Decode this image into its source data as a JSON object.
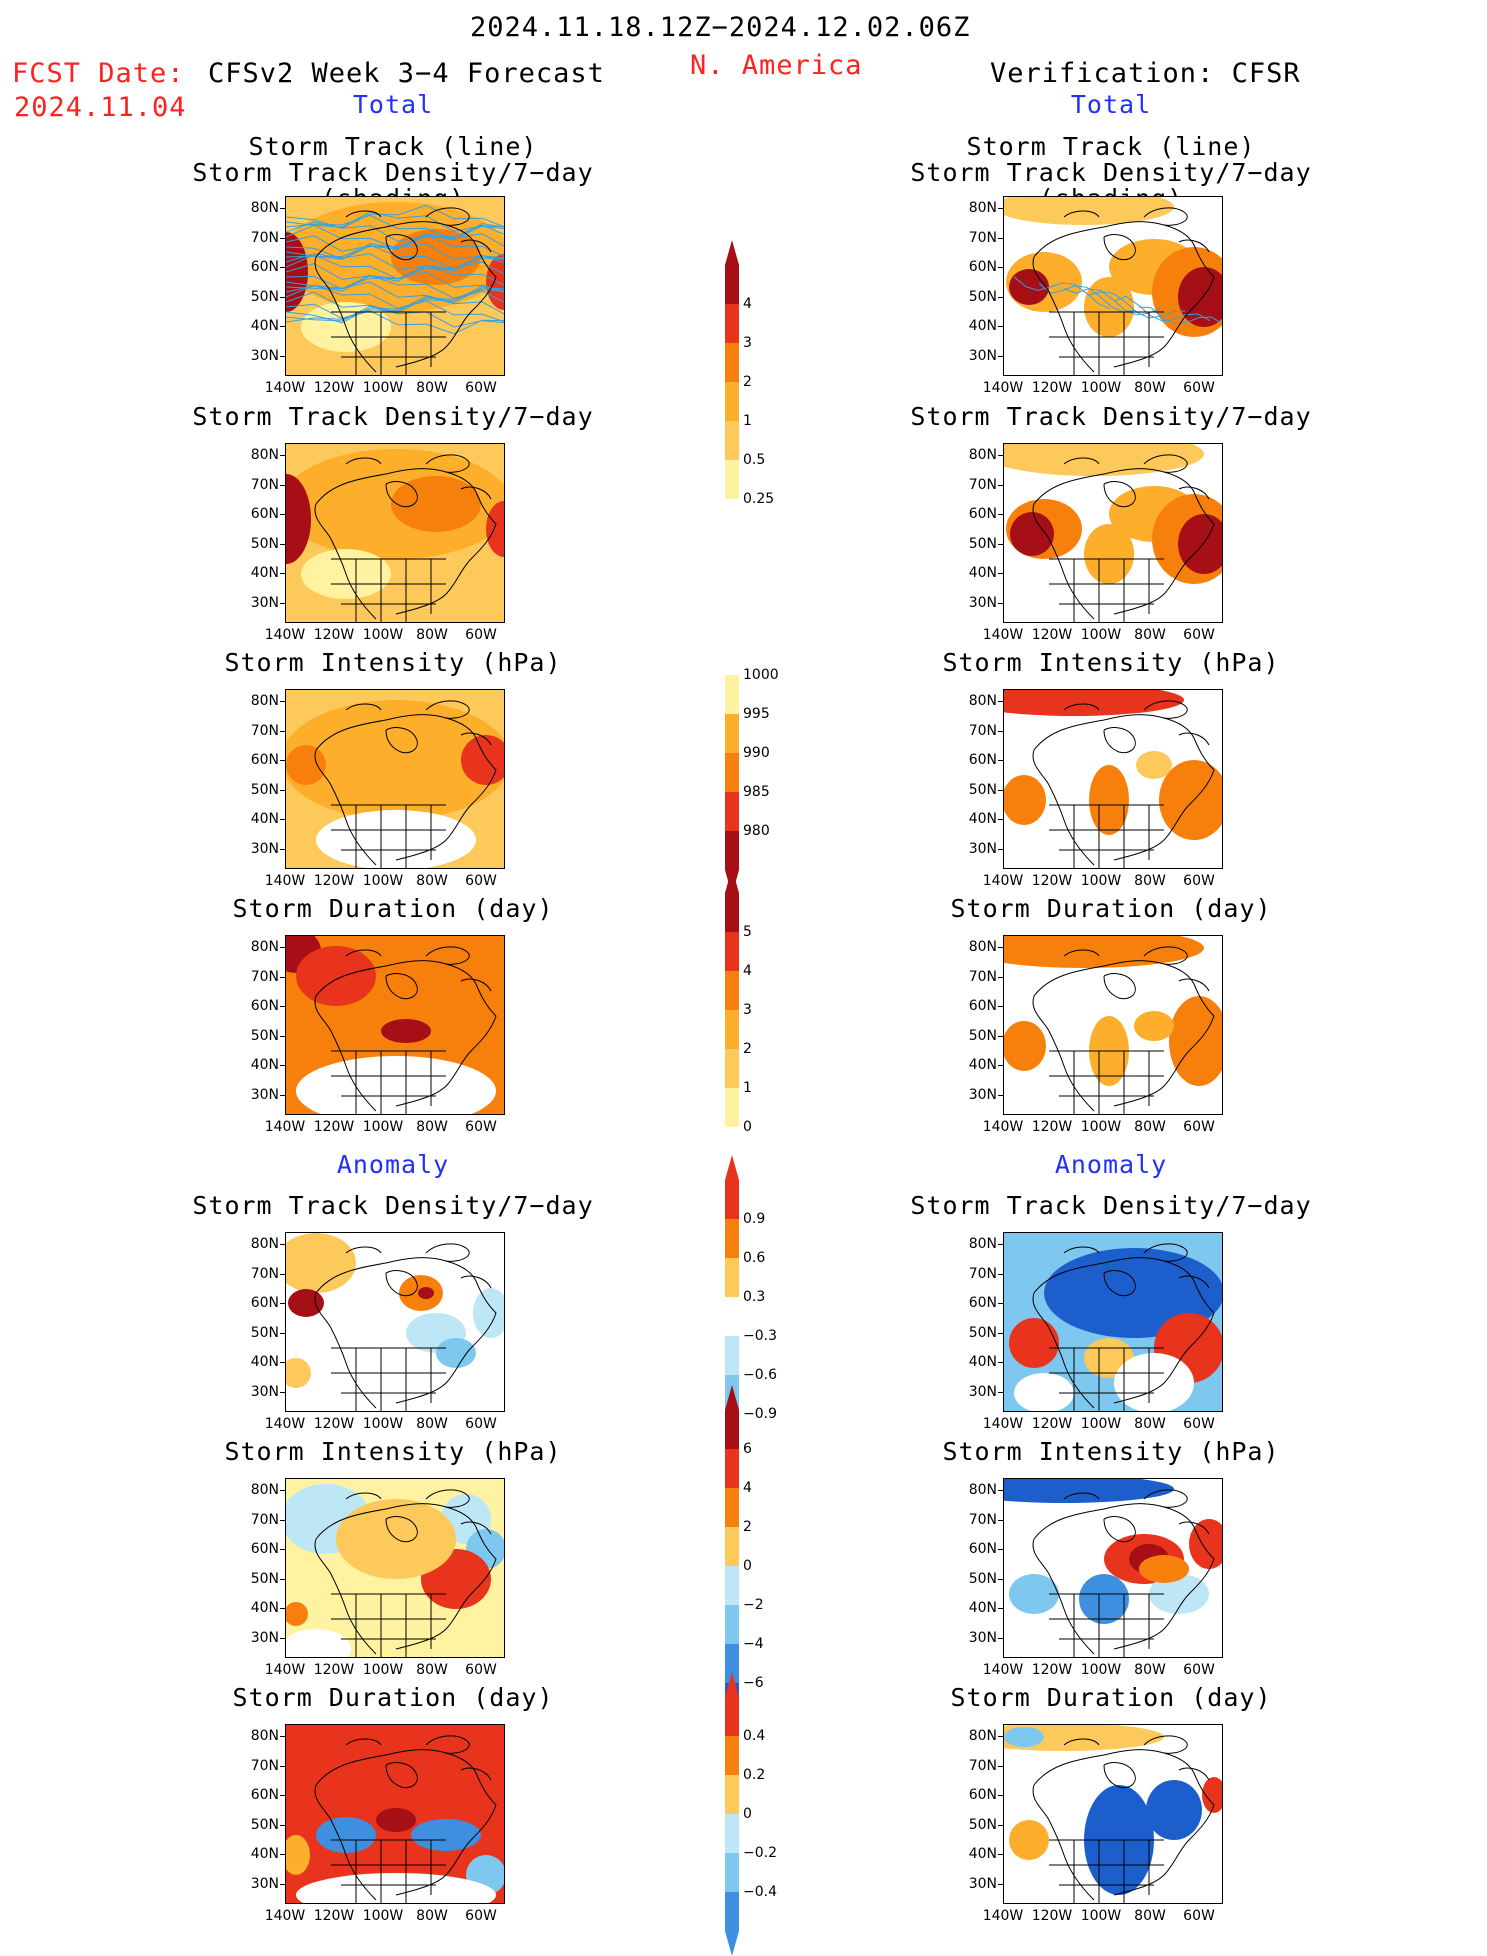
{
  "header": {
    "period": "2024.11.18.12Z−2024.12.02.06Z",
    "fcst_label": "FCST Date:",
    "fcst_date": "2024.11.04",
    "model": "CFSv2 Week 3−4 Forecast",
    "region": "N. America",
    "verification": "Verification: CFSR"
  },
  "sections": {
    "total_left": "Total",
    "total_right": "Total",
    "anomaly_left": "Anomaly",
    "anomaly_right": "Anomaly"
  },
  "panels": {
    "track_line": "Storm Track (line)",
    "track_shading": "Storm Track Density/7−day (shading)",
    "density": "Storm Track Density/7−day",
    "intensity": "Storm Intensity (hPa)",
    "duration": "Storm Duration (day)"
  },
  "axes": {
    "lat": [
      "80N",
      "70N",
      "60N",
      "50N",
      "40N",
      "30N"
    ],
    "lon": [
      "140W",
      "120W",
      "100W",
      "80W",
      "60W"
    ]
  },
  "colorbars": {
    "density_total": [
      "4",
      "3",
      "2",
      "1",
      "0.5",
      "0.25"
    ],
    "intensity_total": [
      "1000",
      "995",
      "990",
      "985",
      "980"
    ],
    "duration_total": [
      "5",
      "4",
      "3",
      "2",
      "1",
      "0"
    ],
    "density_anom": [
      "0.9",
      "0.6",
      "0.3",
      "−0.3",
      "−0.6",
      "−0.9"
    ],
    "intensity_anom": [
      "6",
      "4",
      "2",
      "0",
      "−2",
      "−4",
      "−6"
    ],
    "duration_anom": [
      "0.4",
      "0.2",
      "0",
      "−0.2",
      "−0.4"
    ]
  },
  "colors": {
    "darkred": "#a50f15",
    "red": "#e8341c",
    "orange": "#f7800d",
    "amber": "#fdae2a",
    "lightorange": "#fdc95a",
    "paleyellow": "#fff2a0",
    "lightblue": "#bde7f7",
    "skyblue": "#7ec8f0",
    "blue": "#3f8fe0",
    "darkblue": "#1c5fcc",
    "trackline": "#3aa0dc"
  }
}
